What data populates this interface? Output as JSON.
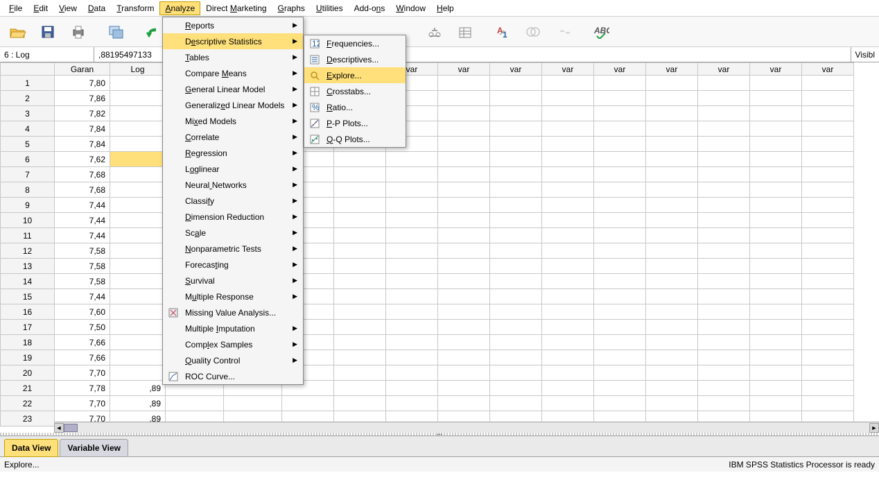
{
  "menubar": [
    "File",
    "Edit",
    "View",
    "Data",
    "Transform",
    "Analyze",
    "Direct Marketing",
    "Graphs",
    "Utilities",
    "Add-ons",
    "Window",
    "Help"
  ],
  "menubar_underline_idx": [
    0,
    0,
    0,
    0,
    0,
    0,
    7,
    0,
    0,
    5,
    0,
    0
  ],
  "menubar_active": 5,
  "cellref": "6 : Log",
  "cellval": ",88195497133",
  "visible": "Visibl",
  "columns": [
    "Garan",
    "Log"
  ],
  "empty_cols": [
    "var",
    "var",
    "var",
    "var",
    "var",
    "var",
    "var",
    "var",
    "var",
    "var",
    "var"
  ],
  "rows": [
    {
      "n": 1,
      "g": "7,80"
    },
    {
      "n": 2,
      "g": "7,86"
    },
    {
      "n": 3,
      "g": "7,82"
    },
    {
      "n": 4,
      "g": "7,84"
    },
    {
      "n": 5,
      "g": "7,84"
    },
    {
      "n": 6,
      "g": "7,62",
      "sel": true
    },
    {
      "n": 7,
      "g": "7,68"
    },
    {
      "n": 8,
      "g": "7,68"
    },
    {
      "n": 9,
      "g": "7,44"
    },
    {
      "n": 10,
      "g": "7,44"
    },
    {
      "n": 11,
      "g": "7,44"
    },
    {
      "n": 12,
      "g": "7,58"
    },
    {
      "n": 13,
      "g": "7,58"
    },
    {
      "n": 14,
      "g": "7,58"
    },
    {
      "n": 15,
      "g": "7,44"
    },
    {
      "n": 16,
      "g": "7,60"
    },
    {
      "n": 17,
      "g": "7,50"
    },
    {
      "n": 18,
      "g": "7,66"
    },
    {
      "n": 19,
      "g": "7,66"
    },
    {
      "n": 20,
      "g": "7,70"
    },
    {
      "n": 21,
      "g": "7,78",
      "l": ",89"
    },
    {
      "n": 22,
      "g": "7,70",
      "l": ",89"
    },
    {
      "n": 23,
      "g": "7,70",
      "l": ",89"
    }
  ],
  "tabs": {
    "active": "Data View",
    "inactive": "Variable View"
  },
  "status_left": "Explore...",
  "status_right": "IBM SPSS Statistics Processor is ready",
  "analyze_menu": [
    {
      "label": "Reports",
      "u": 0,
      "sub": true
    },
    {
      "label": "Descriptive Statistics",
      "u": 1,
      "sub": true,
      "hover": true
    },
    {
      "label": "Tables",
      "u": 0,
      "sub": true
    },
    {
      "label": "Compare Means",
      "u": 8,
      "sub": true
    },
    {
      "label": "General Linear Model",
      "u": 0,
      "sub": true
    },
    {
      "label": "Generalized Linear Models",
      "u": 9,
      "sub": true
    },
    {
      "label": "Mixed Models",
      "u": 2,
      "sub": true
    },
    {
      "label": "Correlate",
      "u": 0,
      "sub": true
    },
    {
      "label": "Regression",
      "u": 0,
      "sub": true
    },
    {
      "label": "Loglinear",
      "u": 1,
      "sub": true
    },
    {
      "label": "Neural Networks",
      "u": 6,
      "sub": true
    },
    {
      "label": "Classify",
      "u": 6,
      "sub": true
    },
    {
      "label": "Dimension Reduction",
      "u": 0,
      "sub": true
    },
    {
      "label": "Scale",
      "u": 2,
      "sub": true
    },
    {
      "label": "Nonparametric Tests",
      "u": 0,
      "sub": true
    },
    {
      "label": "Forecasting",
      "u": 7,
      "sub": true
    },
    {
      "label": "Survival",
      "u": 0,
      "sub": true
    },
    {
      "label": "Multiple Response",
      "u": 1,
      "sub": true
    },
    {
      "label": "Missing Value Analysis...",
      "u": -1,
      "icon": "mva"
    },
    {
      "label": "Multiple Imputation",
      "u": 9,
      "sub": true
    },
    {
      "label": "Complex Samples",
      "u": 4,
      "sub": true
    },
    {
      "label": "Quality Control",
      "u": 0,
      "sub": true
    },
    {
      "label": "ROC Curve...",
      "u": -1,
      "icon": "roc"
    }
  ],
  "desc_menu": [
    {
      "label": "Frequencies...",
      "u": 0,
      "icon": "freq"
    },
    {
      "label": "Descriptives...",
      "u": 0,
      "icon": "desc"
    },
    {
      "label": "Explore...",
      "u": 0,
      "icon": "explore",
      "hover": true
    },
    {
      "label": "Crosstabs...",
      "u": 0,
      "icon": "cross"
    },
    {
      "label": "Ratio...",
      "u": 0,
      "icon": "ratio"
    },
    {
      "label": "P-P Plots...",
      "u": 0,
      "icon": "pp"
    },
    {
      "label": "Q-Q Plots...",
      "u": 0,
      "icon": "qq"
    }
  ],
  "icons": {
    "open": "#f0a020",
    "save": "#4060a0",
    "print": "#606060",
    "dialog": "#4080c0",
    "undo": "#20a040"
  }
}
